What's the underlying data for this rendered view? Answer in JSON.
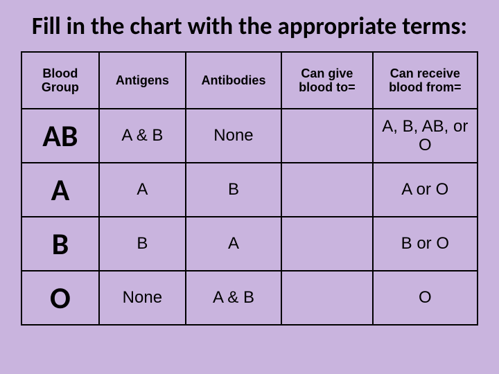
{
  "title": "Fill in the chart with the appropriate terms:",
  "headers": {
    "c0": "Blood Group",
    "c1": "Antigens",
    "c2": "Antibodies",
    "c3": "Can give blood to=",
    "c4": "Can receive blood from="
  },
  "rows": [
    {
      "group": "AB",
      "antigens": "A & B",
      "antibodies": "None",
      "give": "",
      "receive": "A, B, AB, or O"
    },
    {
      "group": "A",
      "antigens": "A",
      "antibodies": "B",
      "give": "",
      "receive": "A or O"
    },
    {
      "group": "B",
      "antigens": "B",
      "antibodies": "A",
      "give": "",
      "receive": "B or O"
    },
    {
      "group": "O",
      "antigens": "None",
      "antibodies": "A & B",
      "give": "",
      "receive": "O"
    }
  ],
  "style": {
    "background_color": "#c9b4de",
    "border_color": "#000000",
    "title_color": "#000000",
    "title_fontsize_pt": 26,
    "header_fontsize_pt": 14,
    "group_fontsize_pt": 33,
    "cell_fontsize_pt": 18,
    "table_type": "table",
    "columns": 5,
    "data_rows": 4
  }
}
